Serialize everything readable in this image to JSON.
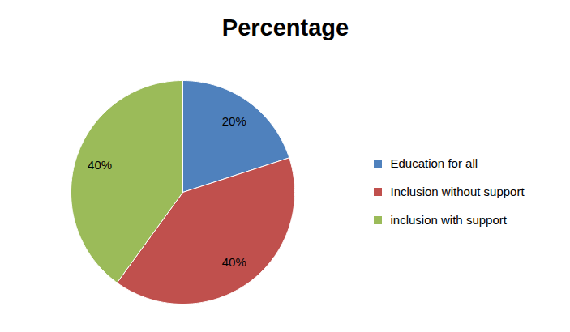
{
  "chart_data": {
    "type": "pie",
    "title": "Percentage",
    "categories": [
      "Education for all",
      "Inclusion without support",
      "inclusion with support"
    ],
    "values": [
      20,
      40,
      40
    ],
    "value_labels": [
      "20%",
      "40%",
      "40%"
    ],
    "colors": [
      "#4f81bd",
      "#c0504d",
      "#9bbb59"
    ],
    "data_labels": true,
    "legend": "right"
  }
}
